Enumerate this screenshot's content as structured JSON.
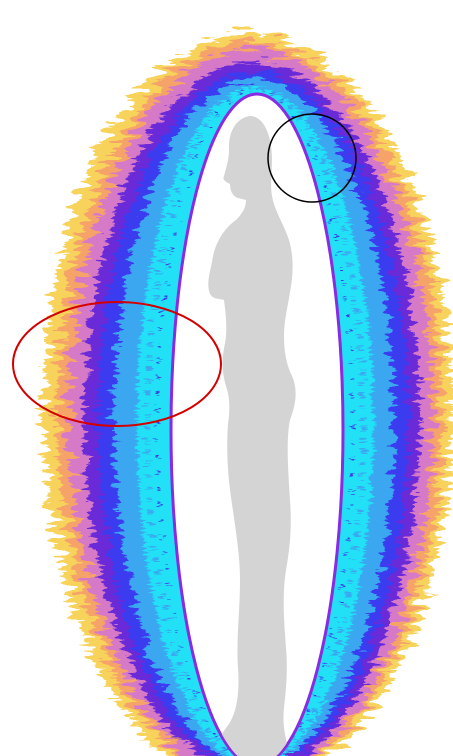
{
  "image": {
    "subject": "human-silhouette-profile",
    "effect": "aura-field-ring",
    "background_color": "#ffffff",
    "silhouette_color": "#d4d4d4",
    "inner_edge_color": "#8a2be2",
    "aura_colors": [
      "#20e0f5",
      "#3aa7f0",
      "#3a3af0",
      "#6a2bd8",
      "#d67ac8",
      "#f6a36a",
      "#f7d35c"
    ],
    "annotations": [
      {
        "shape": "ellipse",
        "stroke": "#d40000",
        "meaning": "highlighted-region-left-side"
      },
      {
        "shape": "circle",
        "stroke": "#000000",
        "meaning": "highlighted-region-upper-back"
      }
    ]
  }
}
